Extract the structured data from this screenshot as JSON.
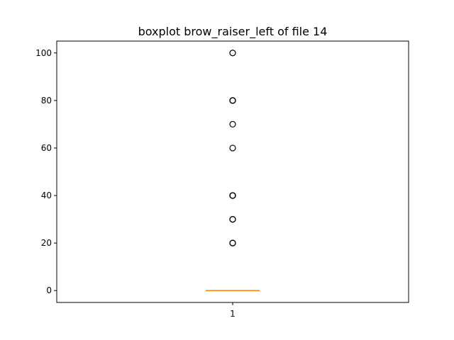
{
  "chart_data": {
    "type": "boxplot",
    "title": "boxplot brow_raiser_left of file 14",
    "xlabel": "",
    "ylabel": "",
    "categories": [
      "1"
    ],
    "ylim": [
      -5,
      105
    ],
    "yticks": [
      0,
      20,
      40,
      60,
      80,
      100
    ],
    "grid": false,
    "boxes": [
      {
        "category": "1",
        "q1": 0,
        "median": 0,
        "q3": 0,
        "whisker_low": 0,
        "whisker_high": 0,
        "outliers": [
          20,
          20,
          30,
          30,
          40,
          40,
          40,
          40,
          60,
          70,
          80,
          80,
          80,
          100
        ]
      }
    ],
    "colors": {
      "box": "#000000",
      "median": "#ff7f0e",
      "outlier": "#000000"
    }
  }
}
